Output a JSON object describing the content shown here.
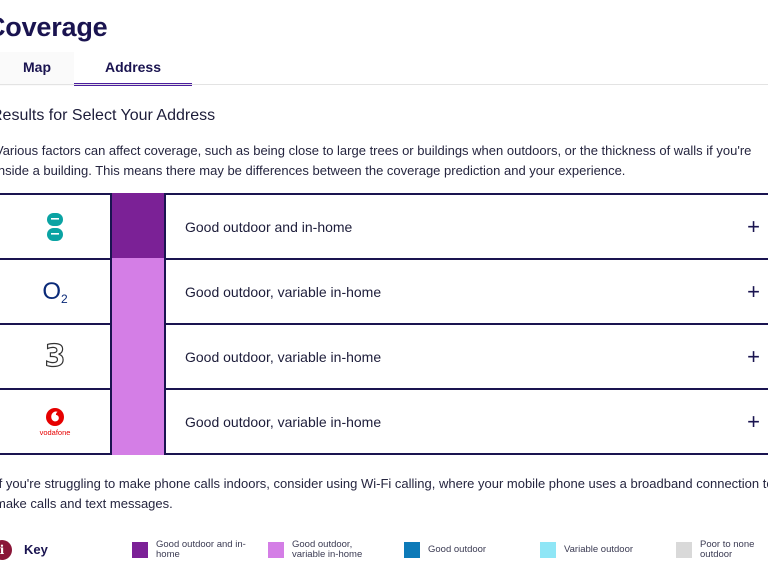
{
  "page": {
    "title": "Coverage",
    "tabs": [
      {
        "label": "Map",
        "active": false
      },
      {
        "label": "Address",
        "active": true
      }
    ],
    "results_heading": "Results for Select Your Address",
    "intro_text": "Various factors can affect coverage, such as being close to large trees or buildings when outdoors, or the thickness of walls if you're inside a building. This means there may be differences between the coverage prediction and your experience.",
    "wifi_note": "If you're struggling to make phone calls indoors, consider using Wi-Fi calling, where your mobile phone uses a broadband connection to make calls and text messages."
  },
  "operators": [
    {
      "logo": "ee-logo-icon",
      "coverage": "Good outdoor and in-home",
      "swatch_color": "#7b2196",
      "expand_icon": "+"
    },
    {
      "logo": "o2-logo-icon",
      "logo_text": "O",
      "logo_sub": "2",
      "coverage": "Good outdoor, variable in-home",
      "swatch_color": "#d47ee6",
      "expand_icon": "+"
    },
    {
      "logo": "three-logo-icon",
      "logo_text": "3",
      "coverage": "Good outdoor, variable in-home",
      "swatch_color": "#d47ee6",
      "expand_icon": "+"
    },
    {
      "logo": "vodafone-logo-icon",
      "logo_text": "vodafone",
      "coverage": "Good outdoor, variable in-home",
      "swatch_color": "#d47ee6",
      "expand_icon": "+"
    }
  ],
  "key": {
    "icon": "info-icon",
    "icon_glyph": "i",
    "label": "Key",
    "items": [
      {
        "label": "Good outdoor and in-home",
        "color": "#7b2196"
      },
      {
        "label": "Good outdoor, variable in-home",
        "color": "#d47ee6"
      },
      {
        "label": "Good outdoor",
        "color": "#0d7ab8"
      },
      {
        "label": "Variable outdoor",
        "color": "#8fe6f6"
      },
      {
        "label": "Poor to none outdoor",
        "color": "#d9d9d9"
      }
    ]
  }
}
